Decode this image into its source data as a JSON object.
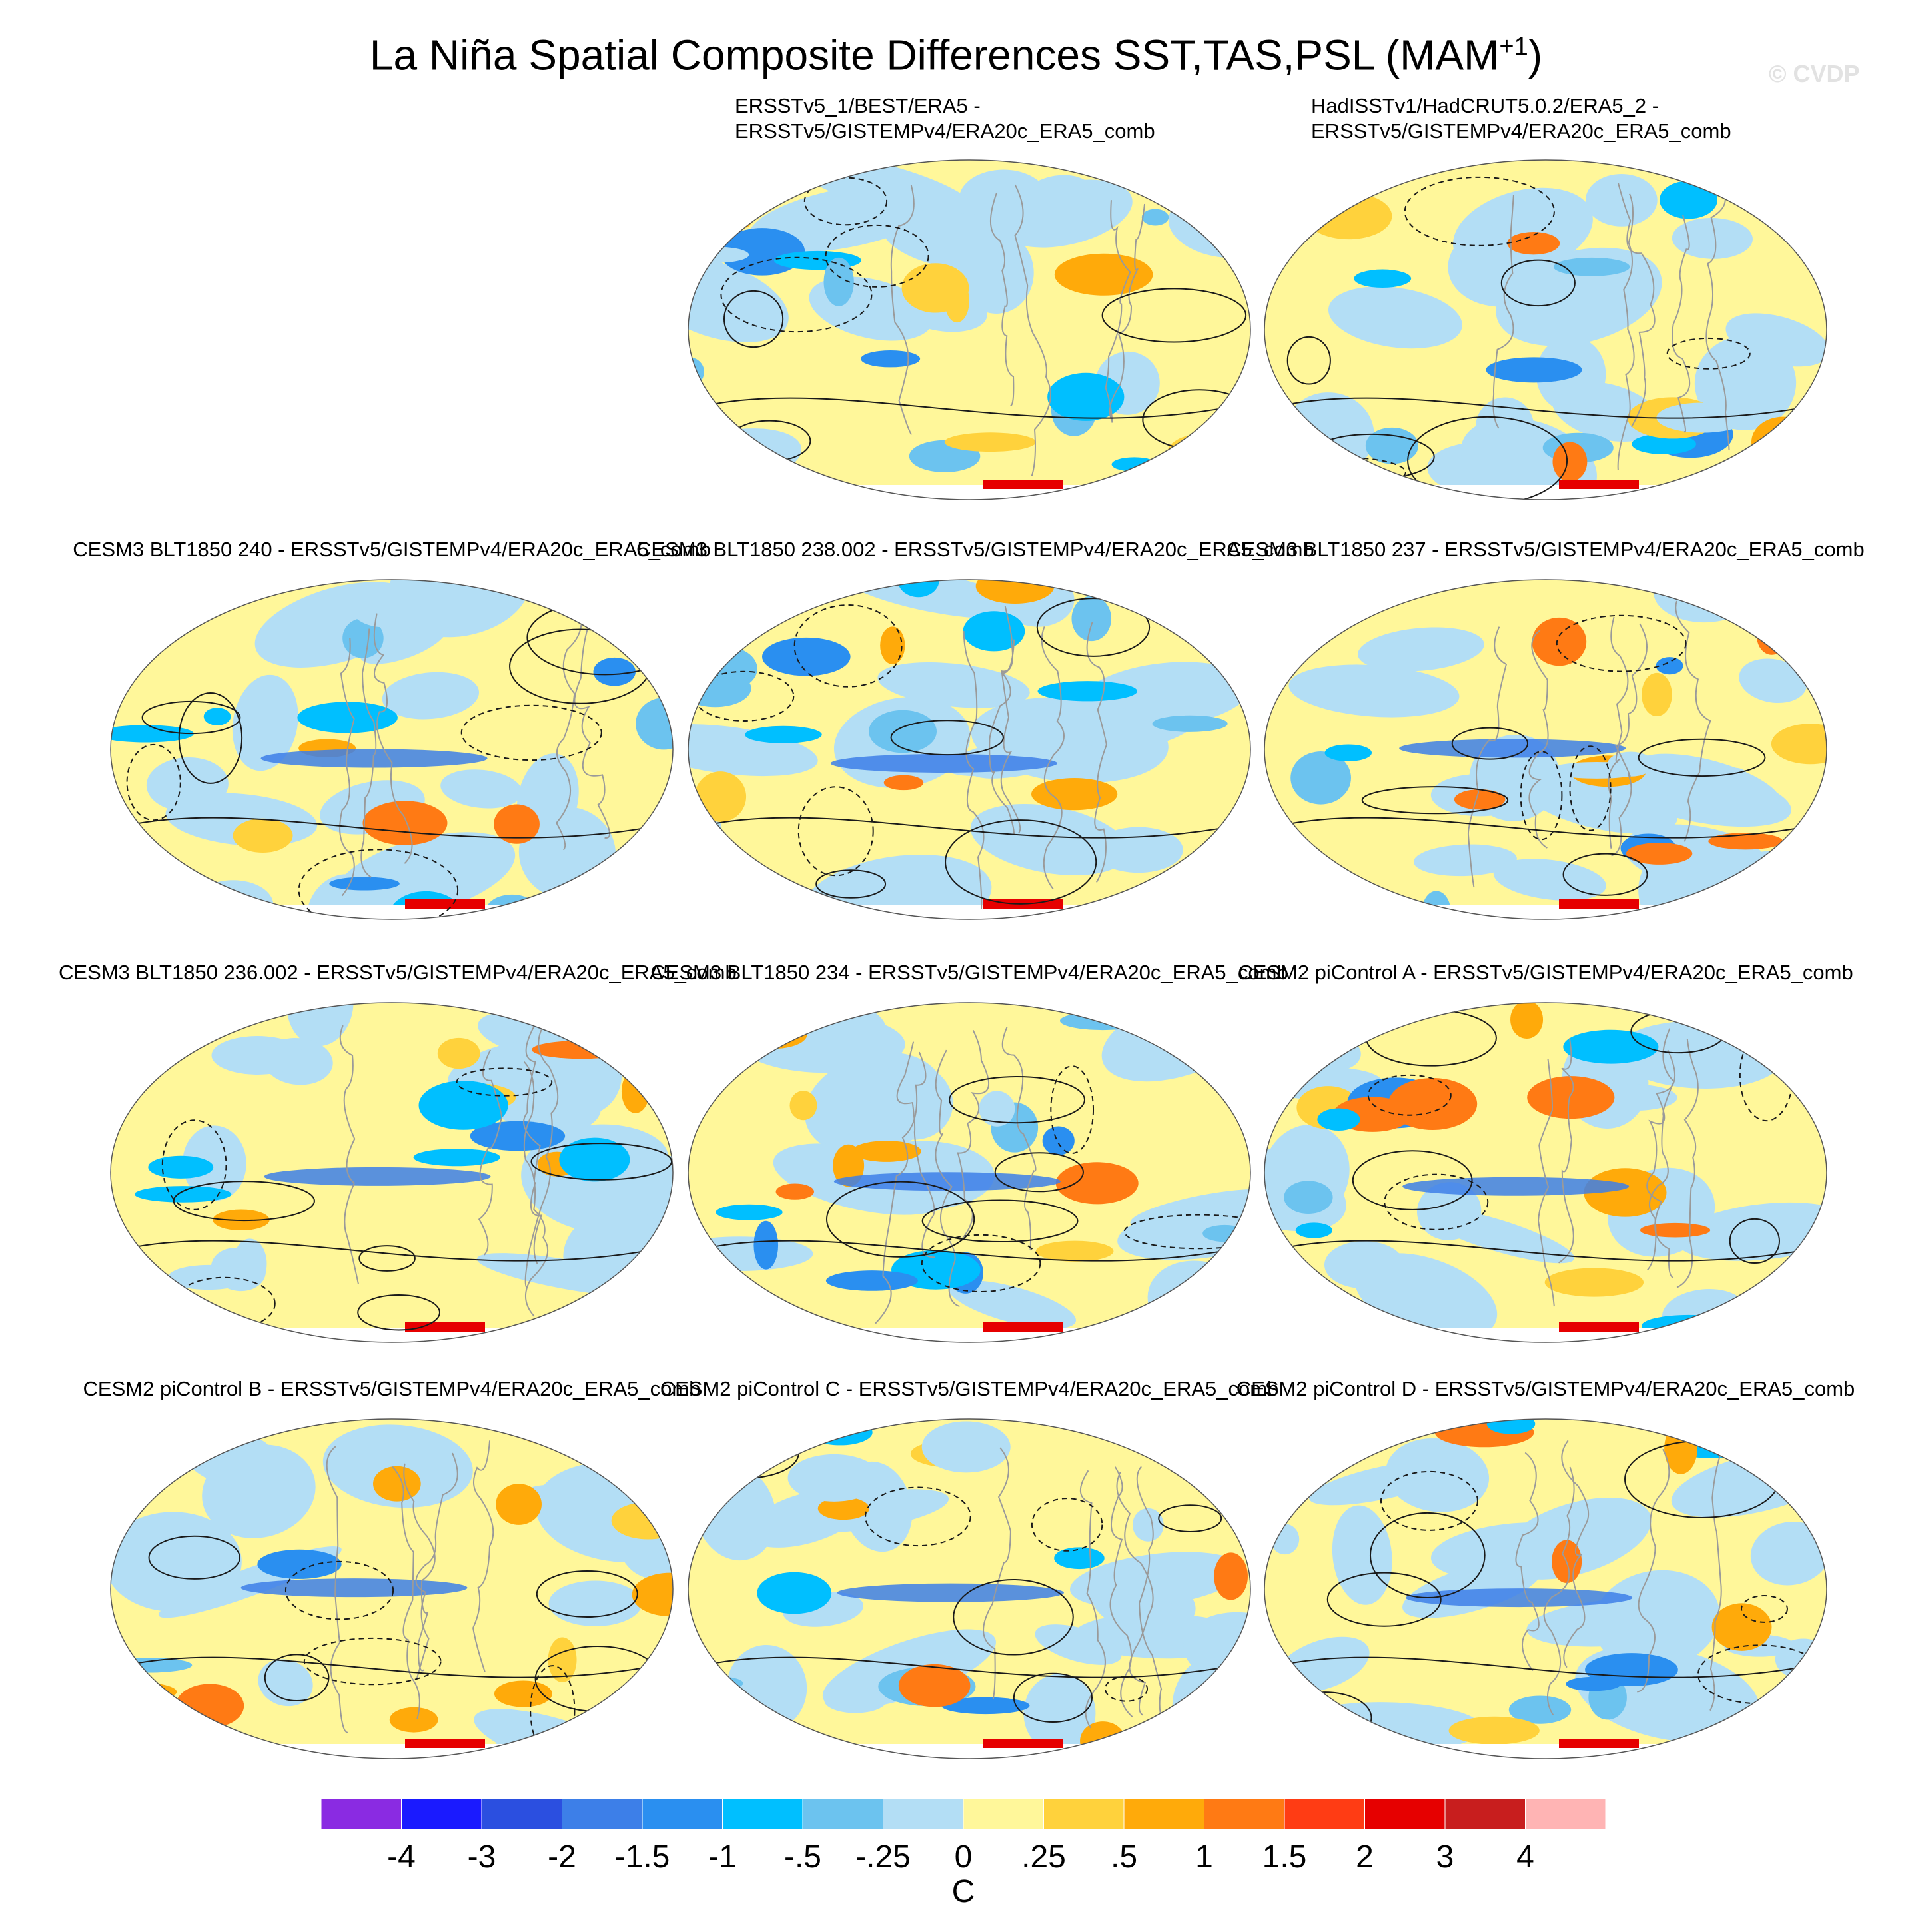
{
  "title": {
    "text": "La Niña Spatial Composite Differences SST,TAS,PSL (MAM",
    "superscript": "+1",
    "suffix": ")"
  },
  "watermark": "© CVDP",
  "chart_data": {
    "type": "map-panels",
    "projection": "Robinson (global)",
    "fields": [
      "SST/TAS (shaded)",
      "PSL (contours)"
    ],
    "panels": [
      {
        "row": 0,
        "col": 1,
        "title_lines": [
          "ERSSTv5_1/BEST/ERA5 -",
          "ERSSTv5/GISTEMPv4/ERA20c_ERA5_comb"
        ]
      },
      {
        "row": 0,
        "col": 2,
        "title_lines": [
          "HadISSTv1/HadCRUT5.0.2/ERA5_2 -",
          "ERSSTv5/GISTEMPv4/ERA20c_ERA5_comb"
        ]
      },
      {
        "row": 1,
        "col": 0,
        "title_lines": [
          "CESM3 BLT1850 240 - ERSSTv5/GISTEMPv4/ERA20c_ERA5_comb"
        ]
      },
      {
        "row": 1,
        "col": 1,
        "title_lines": [
          "CESM3 BLT1850 238.002 - ERSSTv5/GISTEMPv4/ERA20c_ERA5_comb"
        ]
      },
      {
        "row": 1,
        "col": 2,
        "title_lines": [
          "CESM3 BLT1850 237 - ERSSTv5/GISTEMPv4/ERA20c_ERA5_comb"
        ]
      },
      {
        "row": 2,
        "col": 0,
        "title_lines": [
          "CESM3 BLT1850 236.002 - ERSSTv5/GISTEMPv4/ERA20c_ERA5_comb"
        ]
      },
      {
        "row": 2,
        "col": 1,
        "title_lines": [
          "CESM3 BLT1850 234 - ERSSTv5/GISTEMPv4/ERA20c_ERA5_comb"
        ]
      },
      {
        "row": 2,
        "col": 2,
        "title_lines": [
          "CESM2 piControl A - ERSSTv5/GISTEMPv4/ERA20c_ERA5_comb"
        ]
      },
      {
        "row": 3,
        "col": 0,
        "title_lines": [
          "CESM2 piControl B - ERSSTv5/GISTEMPv4/ERA20c_ERA5_comb"
        ]
      },
      {
        "row": 3,
        "col": 1,
        "title_lines": [
          "CESM2 piControl C - ERSSTv5/GISTEMPv4/ERA20c_ERA5_comb"
        ]
      },
      {
        "row": 3,
        "col": 2,
        "title_lines": [
          "CESM2 piControl D - ERSSTv5/GISTEMPv4/ERA20c_ERA5_comb"
        ]
      }
    ],
    "colorbar": {
      "unit": "C",
      "tick_labels": [
        "-4",
        "-3",
        "-2",
        "-1.5",
        "-1",
        "-.5",
        "-.25",
        "0",
        ".25",
        ".5",
        "1",
        "1.5",
        "2",
        "3",
        "4"
      ],
      "colors": [
        "#8a2be2",
        "#1a1aff",
        "#2b4fe0",
        "#3d7fe8",
        "#2a8ff0",
        "#00bfff",
        "#6cc3ef",
        "#b3def5",
        "#fff79a",
        "#ffd23c",
        "#ffaa0a",
        "#ff7a14",
        "#ff3c14",
        "#e60000",
        "#c81e1e",
        "#ffb4b4"
      ]
    }
  },
  "colors": {
    "ocean_warm": "#fff79a",
    "ocean_cool": "#b3def5",
    "contour": "#1a1a1a",
    "coast": "#9a9a9a"
  }
}
